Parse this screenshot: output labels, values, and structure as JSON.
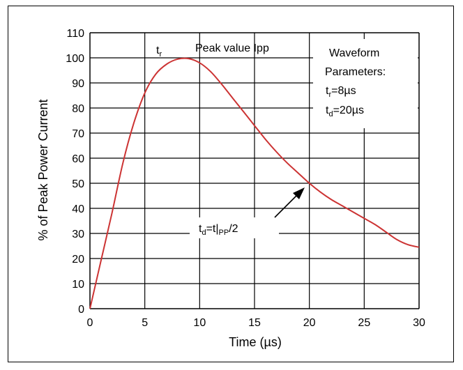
{
  "chart_data": {
    "type": "line",
    "title": "",
    "xlabel": "Time (µs)",
    "ylabel": "% of Peak Power Current",
    "xlim": [
      0,
      30
    ],
    "ylim": [
      0,
      110
    ],
    "xticks": [
      0,
      5,
      10,
      15,
      20,
      25,
      30
    ],
    "yticks": [
      0,
      10,
      20,
      30,
      40,
      50,
      60,
      70,
      80,
      90,
      100,
      110
    ],
    "grid": true,
    "series": [
      {
        "color": "#cc3333",
        "x": [
          0,
          1,
          2,
          3,
          4,
          5,
          6,
          7,
          8,
          9,
          10,
          11,
          12,
          13,
          14,
          15,
          16,
          17,
          18,
          19,
          20,
          21,
          22,
          23,
          24,
          25,
          26,
          27,
          28,
          29,
          30
        ],
        "y": [
          0,
          19,
          38,
          58,
          74,
          86,
          93.5,
          97.5,
          99.5,
          99.7,
          98,
          94.5,
          89.5,
          84,
          78.5,
          73,
          67.5,
          62.5,
          58,
          54,
          50,
          46.5,
          43.5,
          41,
          38.5,
          36,
          33.5,
          30.5,
          27.5,
          25.5,
          24.5
        ]
      }
    ],
    "annotations": {
      "tr": "t",
      "tr_sub": "r",
      "peak": "Peak value Ipp",
      "params_line1": "Waveform",
      "params_line2": "Parameters:",
      "param_tr_t": "t",
      "param_tr_sub": "r",
      "param_tr_val": "=8µs",
      "param_td_t": "t",
      "param_td_sub": "d",
      "param_td_val": "=20µs",
      "td_t": "t",
      "td_sub": "d",
      "td_mid": "=t|",
      "td_sub2": "PP",
      "td_end": "/2"
    }
  }
}
